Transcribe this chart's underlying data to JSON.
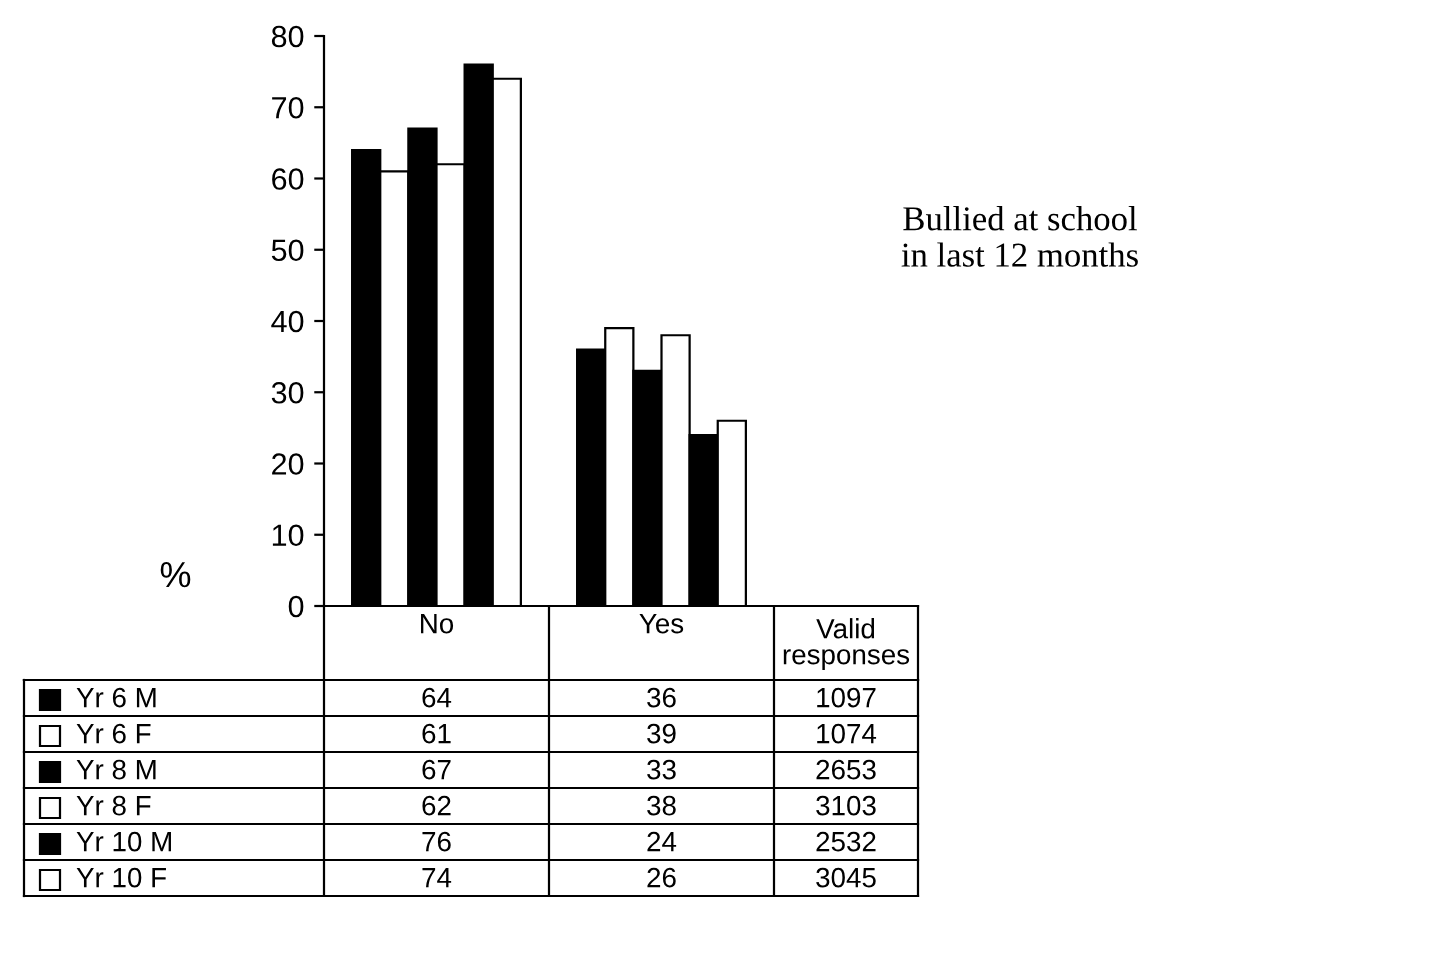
{
  "chart_data": {
    "type": "bar",
    "title": "Bullied at school\nin last 12 months",
    "ylabel": "%",
    "categories": [
      "No",
      "Yes"
    ],
    "series": [
      {
        "name": "Yr 6 M",
        "color": "#000000",
        "values": [
          64,
          36
        ]
      },
      {
        "name": "Yr 6 F",
        "color": "#ffffff",
        "values": [
          61,
          39
        ]
      },
      {
        "name": "Yr 8 M",
        "color": "#000000",
        "values": [
          67,
          33
        ]
      },
      {
        "name": "Yr 8 F",
        "color": "#ffffff",
        "values": [
          62,
          38
        ]
      },
      {
        "name": "Yr 10 M",
        "color": "#000000",
        "values": [
          76,
          24
        ]
      },
      {
        "name": "Yr 10 F",
        "color": "#ffffff",
        "values": [
          74,
          26
        ]
      }
    ],
    "ylim": [
      0,
      80
    ],
    "yticks": [
      0,
      10,
      20,
      30,
      40,
      50,
      60,
      70,
      80
    ],
    "grid": false,
    "legend": "bottom",
    "data_labels": true,
    "annotations": [
      "Valid\nresponses",
      "1097",
      "1074",
      "2653",
      "3103",
      "2532",
      "3045"
    ]
  }
}
